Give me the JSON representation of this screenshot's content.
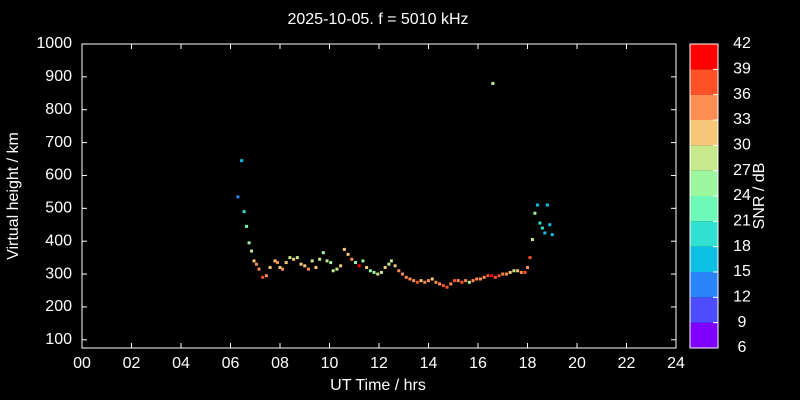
{
  "chart_data": {
    "type": "scatter",
    "title": "2025-10-05. f = 5010 kHz",
    "x_label": "UT Time / hrs",
    "y_label": "Virtual height / km",
    "xlim": [
      0,
      24
    ],
    "xticks": [
      {
        "value": 0,
        "label": "00"
      },
      {
        "value": 2,
        "label": "02"
      },
      {
        "value": 4,
        "label": "04"
      },
      {
        "value": 6,
        "label": "06"
      },
      {
        "value": 8,
        "label": "08"
      },
      10,
      12,
      14,
      16,
      18,
      20,
      22,
      24
    ],
    "ylim": [
      75,
      1000
    ],
    "yticks": [
      100,
      200,
      300,
      400,
      500,
      600,
      700,
      800,
      900,
      1000
    ],
    "grid": false,
    "colorbar": {
      "label": "SNR / dB",
      "levels": [
        6,
        9,
        12,
        15,
        18,
        21,
        24,
        27,
        30,
        33,
        36,
        39,
        42
      ],
      "colors": [
        "#7f00ff",
        "#4d4dff",
        "#2a84f8",
        "#0ec0e6",
        "#30e0d0",
        "#6ef8b8",
        "#9cf8a0",
        "#c8e88c",
        "#f5c878",
        "#ff8c50",
        "#ff5028",
        "#ff0000"
      ]
    },
    "x": [
      6.3,
      6.45,
      6.55,
      6.65,
      6.75,
      6.85,
      6.95,
      7.05,
      7.15,
      7.3,
      7.45,
      7.6,
      7.8,
      7.9,
      8.0,
      8.1,
      8.25,
      8.4,
      8.55,
      8.7,
      8.85,
      9.0,
      9.15,
      9.3,
      9.45,
      9.6,
      9.75,
      9.9,
      10.05,
      10.15,
      10.3,
      10.45,
      10.6,
      10.75,
      10.9,
      11.05,
      11.2,
      11.35,
      11.5,
      11.65,
      11.8,
      11.95,
      12.1,
      12.25,
      12.4,
      12.5,
      12.65,
      12.8,
      12.95,
      13.1,
      13.25,
      13.4,
      13.55,
      13.7,
      13.85,
      14.0,
      14.15,
      14.3,
      14.45,
      14.6,
      14.75,
      14.9,
      15.05,
      15.2,
      15.35,
      15.5,
      15.65,
      15.8,
      15.95,
      16.1,
      16.25,
      16.4,
      16.55,
      16.7,
      16.85,
      17.0,
      17.15,
      17.3,
      17.45,
      17.6,
      17.75,
      17.9,
      18.0,
      18.1,
      18.2,
      18.3,
      18.4,
      18.5,
      18.6,
      18.7,
      18.8,
      18.9,
      19.0,
      16.6
    ],
    "values": [
      535,
      645,
      490,
      445,
      395,
      370,
      340,
      330,
      315,
      290,
      295,
      320,
      340,
      335,
      320,
      315,
      335,
      350,
      345,
      350,
      330,
      325,
      315,
      340,
      320,
      345,
      365,
      340,
      335,
      310,
      315,
      325,
      375,
      360,
      345,
      335,
      325,
      340,
      320,
      310,
      305,
      300,
      305,
      320,
      330,
      340,
      325,
      310,
      300,
      290,
      285,
      280,
      275,
      280,
      275,
      280,
      285,
      275,
      270,
      265,
      260,
      270,
      280,
      280,
      275,
      280,
      275,
      280,
      285,
      285,
      290,
      295,
      295,
      290,
      295,
      300,
      300,
      305,
      310,
      310,
      305,
      305,
      320,
      350,
      405,
      485,
      510,
      455,
      440,
      425,
      510,
      450,
      420,
      880
    ],
    "snr": [
      12,
      15,
      18,
      21,
      24,
      27,
      30,
      33,
      33,
      36,
      33,
      30,
      30,
      33,
      30,
      33,
      30,
      27,
      30,
      27,
      30,
      30,
      33,
      27,
      30,
      27,
      24,
      27,
      24,
      27,
      27,
      30,
      30,
      30,
      33,
      24,
      39,
      24,
      30,
      24,
      24,
      27,
      27,
      30,
      27,
      27,
      30,
      33,
      33,
      33,
      33,
      33,
      36,
      30,
      33,
      33,
      30,
      33,
      33,
      36,
      36,
      33,
      36,
      33,
      36,
      33,
      27,
      33,
      33,
      33,
      33,
      36,
      39,
      36,
      36,
      33,
      33,
      30,
      27,
      30,
      33,
      36,
      33,
      36,
      27,
      24,
      15,
      18,
      18,
      15,
      15,
      15,
      15,
      27
    ]
  }
}
